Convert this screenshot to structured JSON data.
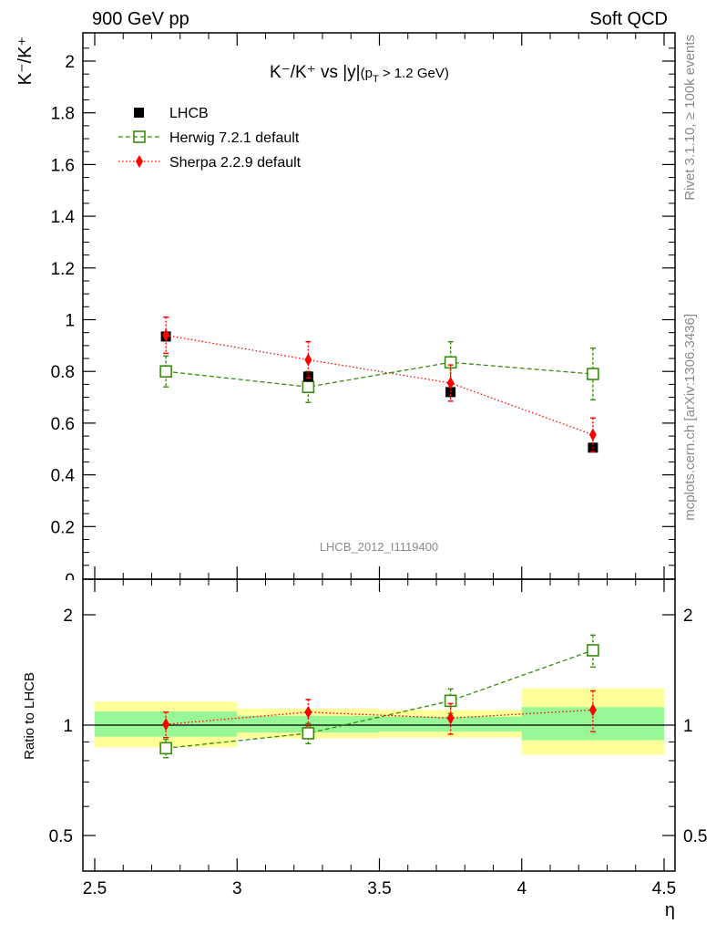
{
  "header": {
    "left": "900 GeV pp",
    "right": "Soft QCD"
  },
  "side_labels": {
    "top": "Rivet 3.1.10, ≥ 100k events",
    "bottom": "mcplots.cern.ch [arXiv:1306.3436]"
  },
  "colors": {
    "data": "#000000",
    "herwig": "#3a8a0f",
    "sherpa": "#ff0000",
    "band_inner": "#98f898",
    "band_outer": "#ffff9a"
  },
  "chart_data": [
    {
      "type": "scatter",
      "title": "K⁻/K⁺ vs |y|",
      "title_sub": "(p",
      "title_sub_T": "T",
      "title_sub_rest": " > 1.2 GeV)",
      "ylabel": "K⁻/K⁺",
      "xlim": [
        2.5,
        4.5
      ],
      "ylim": [
        0,
        2.1
      ],
      "yticks": [
        0.2,
        0.4,
        0.6,
        0.8,
        1,
        1.2,
        1.4,
        1.6,
        1.8,
        2
      ],
      "ytick_labels": [
        "0.2",
        "0.4",
        "0.6",
        "0.8",
        "1",
        "1.2",
        "1.4",
        "1.6",
        "1.8",
        "2"
      ],
      "bottom_tick_label": "0",
      "watermark": "LHCB_2012_I1119400",
      "legend_position": "top-left",
      "series": [
        {
          "name": "LHCB",
          "marker": "filled-square",
          "x": [
            2.75,
            3.25,
            3.75,
            4.25
          ],
          "y": [
            0.935,
            0.78,
            0.72,
            0.505
          ],
          "yerr": [
            0.02,
            0.02,
            0.02,
            0.015
          ]
        },
        {
          "name": "Herwig 7.2.1 default",
          "marker": "open-square",
          "line": "dashed",
          "x": [
            2.75,
            3.25,
            3.75,
            4.25
          ],
          "y": [
            0.8,
            0.74,
            0.835,
            0.79
          ],
          "yerr": [
            0.06,
            0.06,
            0.08,
            0.1
          ]
        },
        {
          "name": "Sherpa 2.2.9 default",
          "marker": "diamond",
          "line": "dotted",
          "x": [
            2.75,
            3.25,
            3.75,
            4.25
          ],
          "y": [
            0.94,
            0.845,
            0.755,
            0.555
          ],
          "yerr": [
            0.07,
            0.07,
            0.07,
            0.065
          ]
        }
      ]
    },
    {
      "type": "scatter",
      "ylabel": "Ratio to LHCB",
      "xlabel": "η",
      "xlim": [
        2.5,
        4.5
      ],
      "ylim": [
        0.4,
        2.4
      ],
      "log_y": true,
      "xticks": [
        2.5,
        3,
        3.5,
        4,
        4.5
      ],
      "xtick_labels": [
        "2.5",
        "3",
        "3.5",
        "4",
        "4.5"
      ],
      "yticks": [
        0.5,
        1,
        2
      ],
      "ytick_labels": [
        "0.5",
        "1",
        "2"
      ],
      "bands": [
        {
          "x0": 2.5,
          "x1": 3.0,
          "inner": [
            0.93,
            1.09
          ],
          "outer": [
            0.87,
            1.16
          ]
        },
        {
          "x0": 3.0,
          "x1": 3.5,
          "inner": [
            0.955,
            1.06
          ],
          "outer": [
            0.92,
            1.11
          ]
        },
        {
          "x0": 3.5,
          "x1": 4.0,
          "inner": [
            0.96,
            1.055
          ],
          "outer": [
            0.925,
            1.1
          ]
        },
        {
          "x0": 4.0,
          "x1": 4.5,
          "inner": [
            0.91,
            1.12
          ],
          "outer": [
            0.83,
            1.26
          ]
        }
      ],
      "series": [
        {
          "name": "Herwig 7.2.1 default",
          "x": [
            2.75,
            3.25,
            3.75,
            4.25
          ],
          "y": [
            0.865,
            0.95,
            1.165,
            1.6
          ],
          "yerr": [
            0.05,
            0.06,
            0.09,
            0.16
          ]
        },
        {
          "name": "Sherpa 2.2.9 default",
          "x": [
            2.75,
            3.25,
            3.75,
            4.25
          ],
          "y": [
            1.005,
            1.085,
            1.045,
            1.1
          ],
          "yerr": [
            0.08,
            0.09,
            0.1,
            0.14
          ]
        }
      ]
    }
  ]
}
